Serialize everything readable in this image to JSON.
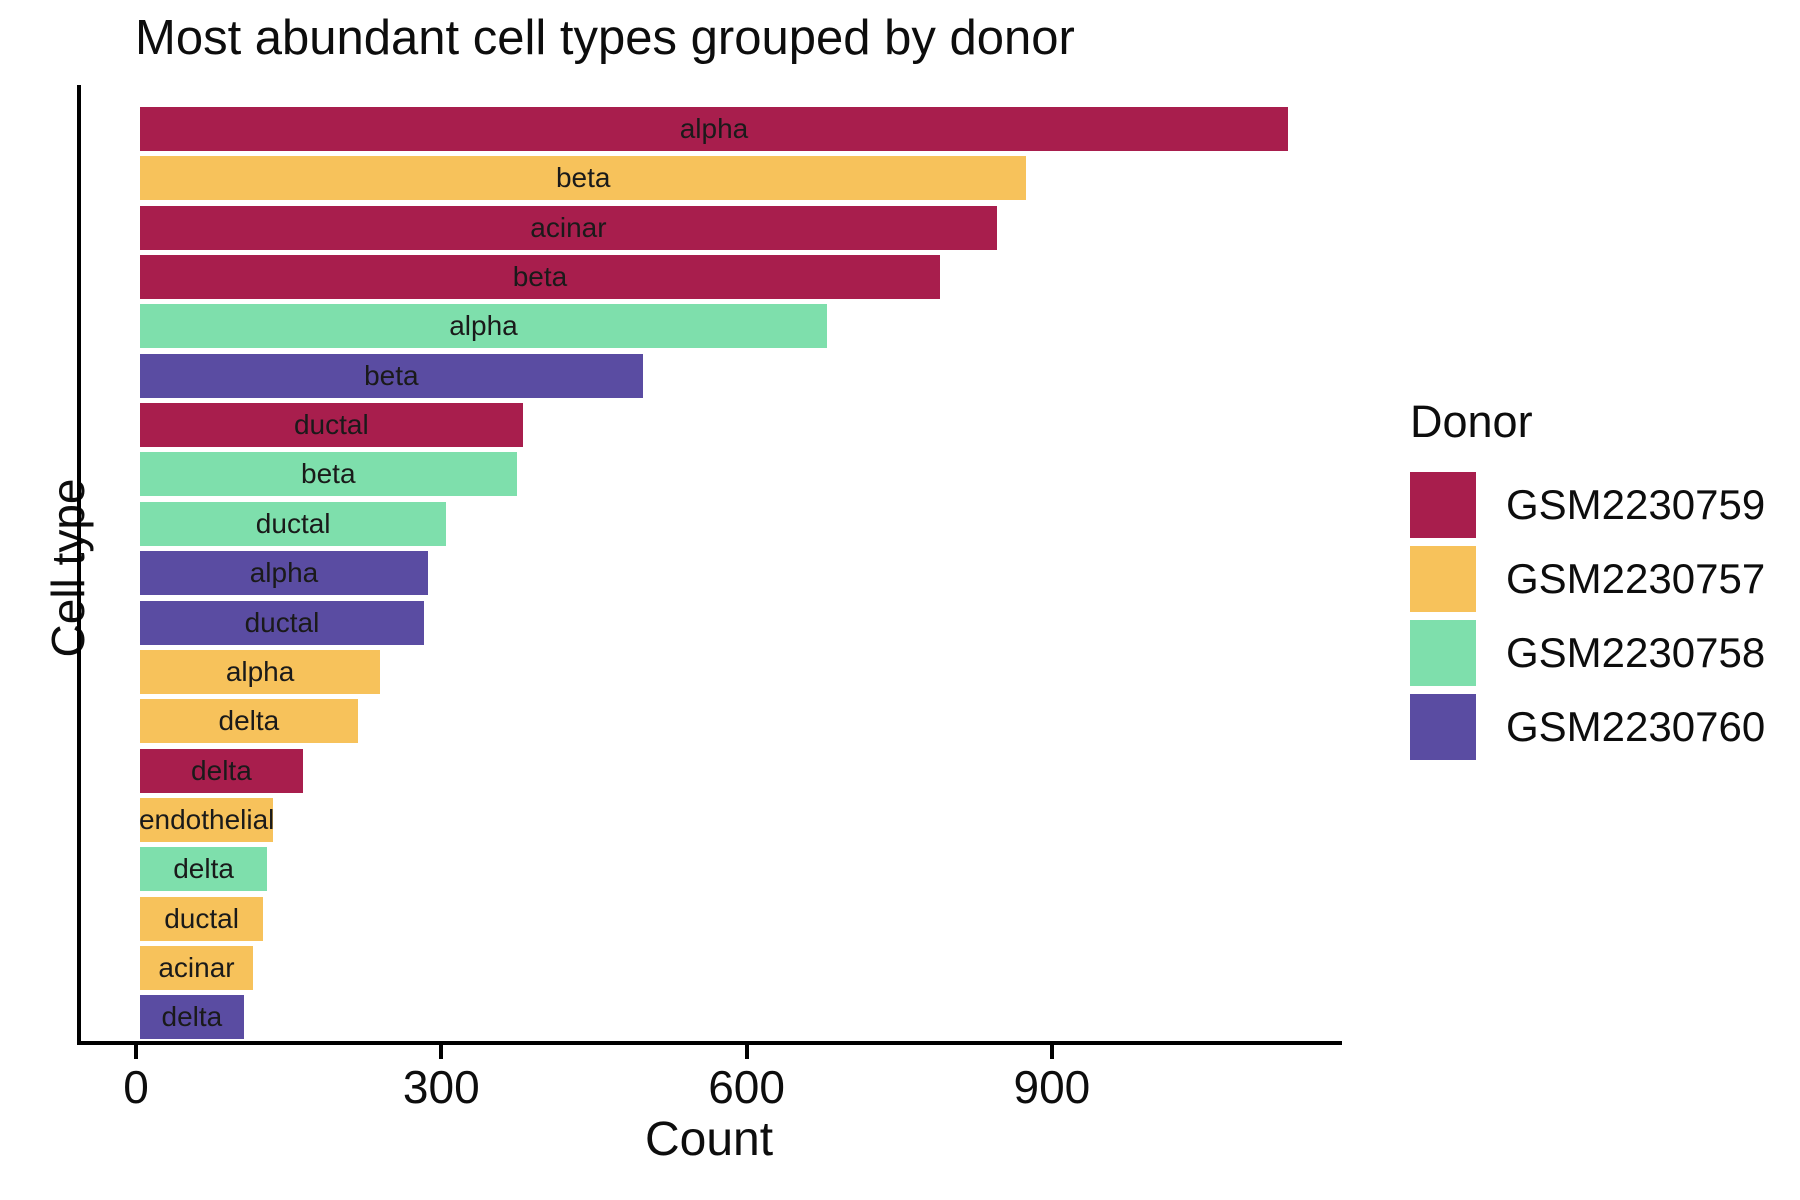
{
  "chart_data": {
    "type": "bar",
    "orientation": "horizontal",
    "title": "Most abundant cell types grouped by donor",
    "xlabel": "Count",
    "ylabel": "Cell type",
    "xlim": [
      0,
      1185
    ],
    "x_ticks": [
      0,
      300,
      600,
      900
    ],
    "grid": false,
    "legend": {
      "title": "Donor",
      "position": "right",
      "entries": [
        {
          "label": "GSM2230759",
          "color": "#A81E4D"
        },
        {
          "label": "GSM2230757",
          "color": "#F7C25B"
        },
        {
          "label": "GSM2230758",
          "color": "#7EDFAC"
        },
        {
          "label": "GSM2230760",
          "color": "#5A4CA2"
        }
      ]
    },
    "donor_colors": {
      "GSM2230759": "#A81E4D",
      "GSM2230757": "#F7C25B",
      "GSM2230758": "#7EDFAC",
      "GSM2230760": "#5A4CA2"
    },
    "bars": [
      {
        "cell_type": "alpha",
        "donor": "GSM2230759",
        "count": 1128
      },
      {
        "cell_type": "beta",
        "donor": "GSM2230757",
        "count": 871
      },
      {
        "cell_type": "acinar",
        "donor": "GSM2230759",
        "count": 842
      },
      {
        "cell_type": "beta",
        "donor": "GSM2230759",
        "count": 786
      },
      {
        "cell_type": "alpha",
        "donor": "GSM2230758",
        "count": 675
      },
      {
        "cell_type": "beta",
        "donor": "GSM2230760",
        "count": 494
      },
      {
        "cell_type": "ductal",
        "donor": "GSM2230759",
        "count": 376
      },
      {
        "cell_type": "beta",
        "donor": "GSM2230758",
        "count": 370
      },
      {
        "cell_type": "ductal",
        "donor": "GSM2230758",
        "count": 301
      },
      {
        "cell_type": "alpha",
        "donor": "GSM2230760",
        "count": 283
      },
      {
        "cell_type": "ductal",
        "donor": "GSM2230760",
        "count": 279
      },
      {
        "cell_type": "alpha",
        "donor": "GSM2230757",
        "count": 236
      },
      {
        "cell_type": "delta",
        "donor": "GSM2230757",
        "count": 214
      },
      {
        "cell_type": "delta",
        "donor": "GSM2230759",
        "count": 160
      },
      {
        "cell_type": "endothelial",
        "donor": "GSM2230757",
        "count": 131
      },
      {
        "cell_type": "delta",
        "donor": "GSM2230758",
        "count": 125
      },
      {
        "cell_type": "ductal",
        "donor": "GSM2230757",
        "count": 121
      },
      {
        "cell_type": "acinar",
        "donor": "GSM2230757",
        "count": 111
      },
      {
        "cell_type": "delta",
        "donor": "GSM2230760",
        "count": 102
      }
    ]
  }
}
